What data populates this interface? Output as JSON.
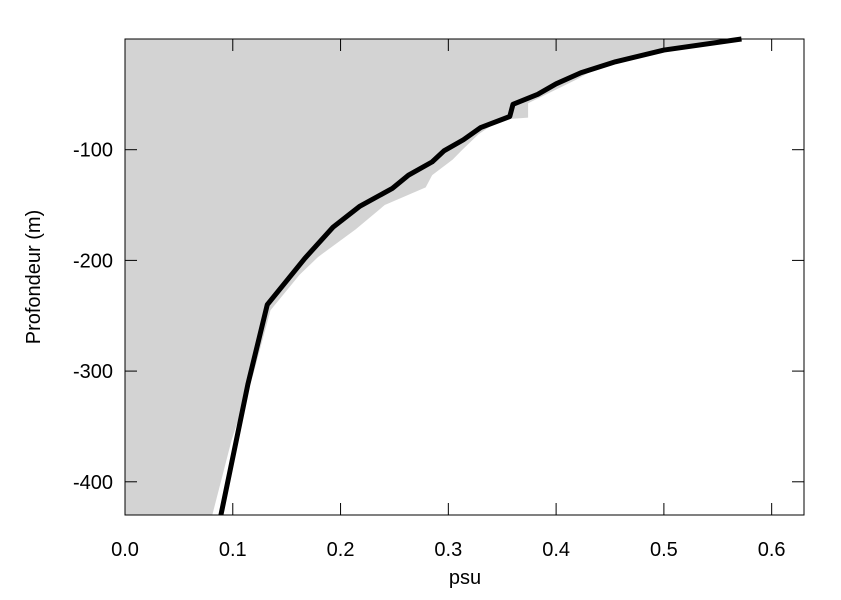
{
  "chart_data": {
    "type": "line",
    "xlabel": "psu",
    "ylabel": "Profondeur (m)",
    "xlim": [
      0,
      0.63
    ],
    "ylim": [
      -430,
      0
    ],
    "xticks": [
      {
        "value": 0,
        "label": "0.0"
      },
      0.1,
      0.2,
      0.3,
      0.4,
      0.5,
      0.6
    ],
    "yticks": [
      -400,
      -300,
      -200,
      -100
    ],
    "series": [
      {
        "color": "#d3d3d3",
        "fill": true,
        "x": [
          0.572,
          0.45,
          0.418,
          0.374,
          0.374,
          0.348,
          0.328,
          0.313,
          0.304,
          0.285,
          0.279,
          0.241,
          0.214,
          0.179,
          0.162,
          0.135,
          0.119,
          0.099,
          0.081
        ],
        "values": [
          0,
          -20,
          -37,
          -58,
          -71,
          -73,
          -86,
          -100,
          -109,
          -123,
          -134,
          -150,
          -172,
          -197,
          -213,
          -245,
          -303,
          -362,
          -430
        ]
      },
      {
        "color": "#000000",
        "fill": false,
        "x": [
          0.572,
          0.5,
          0.455,
          0.423,
          0.4,
          0.383,
          0.36,
          0.357,
          0.33,
          0.314,
          0.296,
          0.285,
          0.263,
          0.248,
          0.218,
          0.193,
          0.167,
          0.132,
          0.114,
          0.089
        ],
        "values": [
          0,
          -10,
          -20.6,
          -30.5,
          -40.5,
          -50,
          -59,
          -70,
          -80,
          -91,
          -101,
          -111,
          -123,
          -135,
          -151,
          -170,
          -198,
          -240,
          -312,
          -430
        ]
      }
    ]
  }
}
